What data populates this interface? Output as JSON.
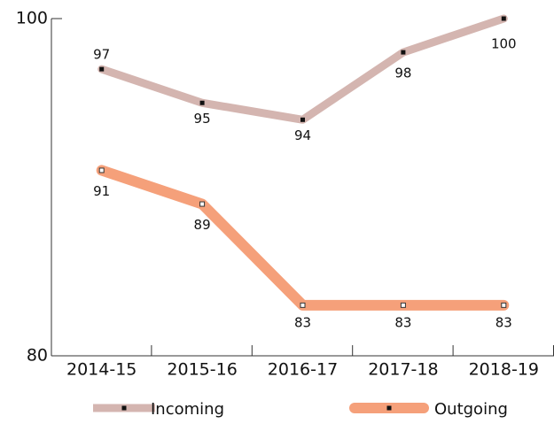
{
  "chart_data": {
    "type": "line",
    "categories": [
      "2014-15",
      "2015-16",
      "2016-17",
      "2017-18",
      "2018-19"
    ],
    "series": [
      {
        "name": "Incoming",
        "color": "#d4b5b0",
        "values": [
          97,
          95,
          94,
          98,
          100
        ]
      },
      {
        "name": "Outgoing",
        "color": "#f5a07a",
        "values": [
          91,
          89,
          83,
          83,
          83
        ]
      }
    ],
    "ylim": [
      80,
      100
    ],
    "yticks": [
      80,
      100
    ],
    "legend": "bottom"
  }
}
